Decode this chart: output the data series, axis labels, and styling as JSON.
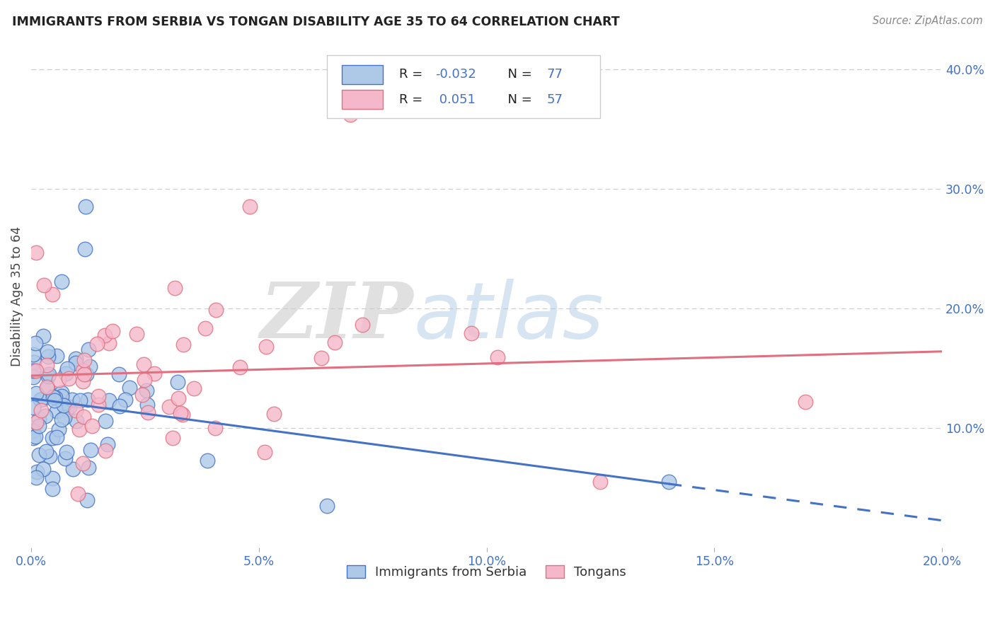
{
  "title": "IMMIGRANTS FROM SERBIA VS TONGAN DISABILITY AGE 35 TO 64 CORRELATION CHART",
  "source": "Source: ZipAtlas.com",
  "ylabel_label": "Disability Age 35 to 64",
  "legend_label1": "Immigrants from Serbia",
  "legend_label2": "Tongans",
  "R1": -0.032,
  "N1": 77,
  "R2": 0.051,
  "N2": 57,
  "color_serbia_fill": "#aec9e8",
  "color_tongan_fill": "#f5b8ca",
  "color_serbia_edge": "#4472c4",
  "color_tongan_edge": "#e07080",
  "color_serbia_line": "#4472c4",
  "color_tongan_line": "#e07080",
  "xlim": [
    0.0,
    0.2
  ],
  "ylim": [
    0.0,
    0.42
  ],
  "xtick_vals": [
    0.0,
    0.05,
    0.1,
    0.15,
    0.2
  ],
  "xtick_labels": [
    "0.0%",
    "5.0%",
    "10.0%",
    "15.0%",
    "20.0%"
  ],
  "ytick_vals": [
    0.1,
    0.2,
    0.3,
    0.4
  ],
  "ytick_labels": [
    "10.0%",
    "20.0%",
    "30.0%",
    "40.0%"
  ],
  "watermark_zip": "ZIP",
  "watermark_atlas": "atlas",
  "background_color": "#ffffff",
  "grid_color": "#cccccc",
  "seed": 1234
}
